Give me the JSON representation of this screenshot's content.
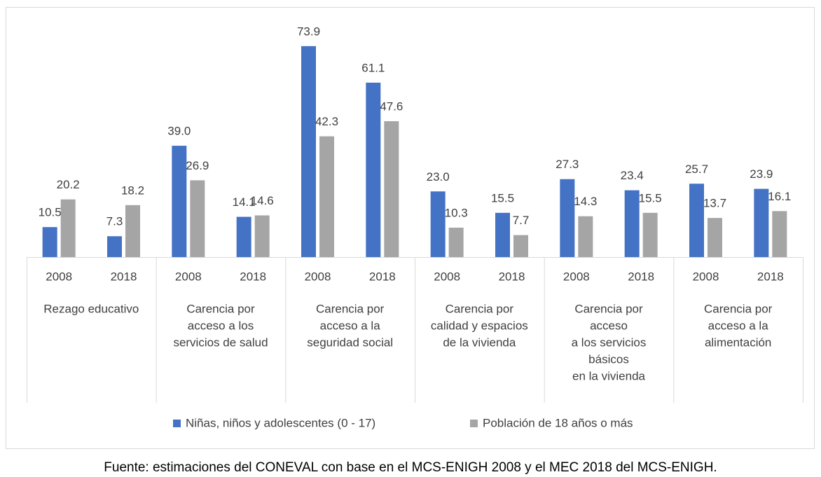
{
  "chart_data": {
    "type": "bar",
    "groups": [
      {
        "label": [
          "Rezago educativo"
        ],
        "categories": [
          "2008",
          "2018"
        ]
      },
      {
        "label": [
          "Carencia por",
          "acceso a los",
          "servicios de salud"
        ],
        "categories": [
          "2008",
          "2018"
        ]
      },
      {
        "label": [
          "Carencia por",
          "acceso a la",
          "seguridad social"
        ],
        "categories": [
          "2008",
          "2018"
        ]
      },
      {
        "label": [
          "Carencia por",
          "calidad y espacios",
          "de la vivienda"
        ],
        "categories": [
          "2008",
          "2018"
        ]
      },
      {
        "label": [
          "Carencia por",
          "acceso",
          "a los servicios",
          "básicos",
          "en la vivienda"
        ],
        "categories": [
          "2008",
          "2018"
        ]
      },
      {
        "label": [
          "Carencia por",
          "acceso a la",
          "alimentación"
        ],
        "categories": [
          "2008",
          "2018"
        ]
      }
    ],
    "series": [
      {
        "name": "Niñas, niños y adolescentes (0 - 17)",
        "color": "#4472c4",
        "values": [
          10.5,
          7.3,
          39.0,
          14.1,
          73.9,
          61.1,
          23.0,
          15.5,
          27.3,
          23.4,
          25.7,
          23.9
        ],
        "value_labels": [
          "10.5",
          "7.3",
          "39.0",
          "14.1",
          "73.9",
          "61.1",
          "23.0",
          "15.5",
          "27.3",
          "23.4",
          "25.7",
          "23.9"
        ]
      },
      {
        "name": "Población de 18 años o más",
        "color": "#a5a5a5",
        "values": [
          20.2,
          18.2,
          26.9,
          14.6,
          42.3,
          47.6,
          10.3,
          7.7,
          14.3,
          15.5,
          13.7,
          16.1
        ],
        "value_labels": [
          "20.2",
          "18.2",
          "26.9",
          "14.6",
          "42.3",
          "47.6",
          "10.3",
          "7.7",
          "14.3",
          "15.5",
          "13.7",
          "16.1"
        ]
      }
    ],
    "ylim": [
      0,
      80
    ],
    "legend": "bottom",
    "note": "Fuente: estimaciones del CONEVAL con base en el MCS-ENIGH 2008 y el MEC 2018 del MCS-ENIGH."
  }
}
